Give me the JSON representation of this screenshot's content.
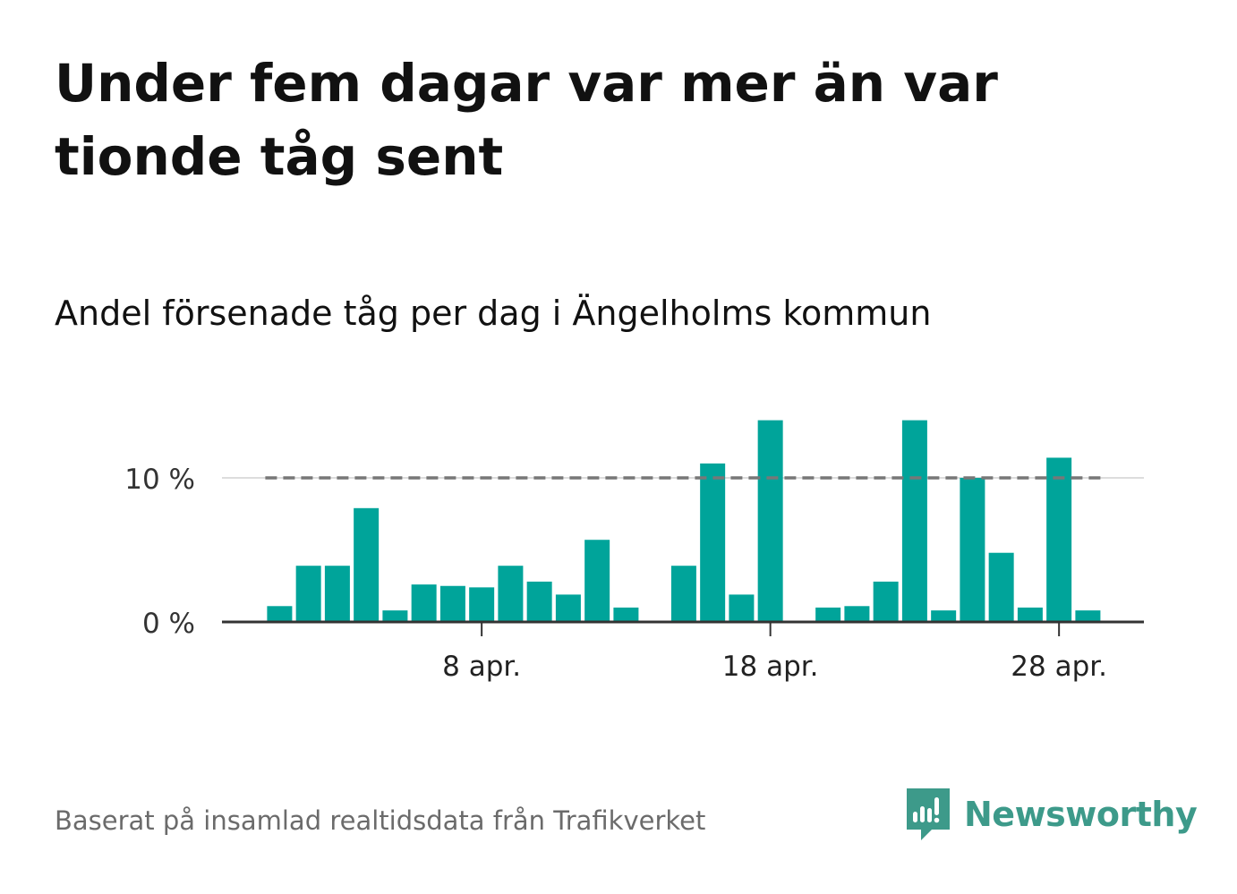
{
  "headline": "Under fem dagar var mer än var tionde tåg sent",
  "subtitle": "Andel försenade tåg per dag i Ängelholms kommun",
  "footer": {
    "source": "Baserat på insamlad realtidsdata från Trafikverket",
    "brand": "Newsworthy"
  },
  "colors": {
    "bar": "#00a49a",
    "brand": "#3d9a8a",
    "threshold": "#777777",
    "axis": "#333333"
  },
  "chart_data": {
    "type": "bar",
    "title": "",
    "xlabel": "",
    "ylabel": "",
    "x": [
      "2024-04-01",
      "2024-04-02",
      "2024-04-03",
      "2024-04-04",
      "2024-04-05",
      "2024-04-06",
      "2024-04-07",
      "2024-04-08",
      "2024-04-09",
      "2024-04-10",
      "2024-04-11",
      "2024-04-12",
      "2024-04-13",
      "2024-04-14",
      "2024-04-15",
      "2024-04-16",
      "2024-04-17",
      "2024-04-18",
      "2024-04-19",
      "2024-04-20",
      "2024-04-21",
      "2024-04-22",
      "2024-04-23",
      "2024-04-24",
      "2024-04-25",
      "2024-04-26",
      "2024-04-27",
      "2024-04-28",
      "2024-04-29"
    ],
    "values": [
      1.1,
      3.9,
      3.9,
      7.9,
      0.8,
      2.6,
      2.5,
      2.4,
      3.9,
      2.8,
      1.9,
      5.7,
      1.0,
      0,
      3.9,
      11.0,
      1.9,
      14.0,
      0,
      1.0,
      1.1,
      2.8,
      14.0,
      0.8,
      10.0,
      4.8,
      1.0,
      11.4,
      0.8
    ],
    "ylim": [
      0,
      14
    ],
    "yticks": [
      0,
      10
    ],
    "ytick_labels": [
      "0 %",
      "10 %"
    ],
    "xticks": [
      "2024-04-08",
      "2024-04-18",
      "2024-04-28"
    ],
    "xtick_labels": [
      "8 apr.",
      "18 apr.",
      "28 apr."
    ],
    "threshold": 10,
    "grid": true
  }
}
